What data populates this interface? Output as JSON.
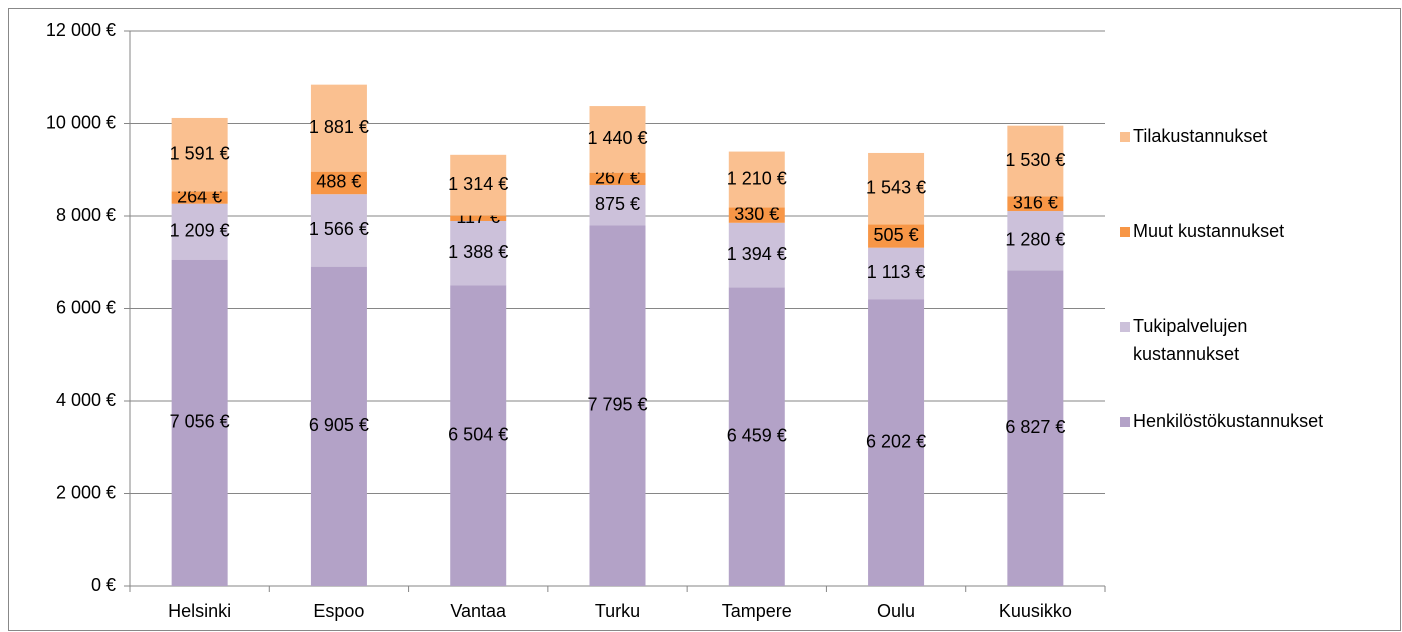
{
  "chart_data": {
    "type": "stacked_bar",
    "categories": [
      "Helsinki",
      "Espoo",
      "Vantaa",
      "Turku",
      "Tampere",
      "Oulu",
      "Kuusikko"
    ],
    "series": [
      {
        "name": "Henkilöstökustannukset",
        "color": "#b3a2c7",
        "values": [
          7056,
          6905,
          6504,
          7795,
          6459,
          6202,
          6827
        ],
        "value_labels": [
          "7 056 €",
          "6 905 €",
          "6 504 €",
          "7 795 €",
          "6 459 €",
          "6 202 €",
          "6 827 €"
        ]
      },
      {
        "name": "Tukipalvelujen kustannukset",
        "color": "#ccc1da",
        "values": [
          1209,
          1566,
          1388,
          875,
          1394,
          1113,
          1280
        ],
        "value_labels": [
          "1 209 €",
          "1 566 €",
          "1 388 €",
          "875 €",
          "1 394 €",
          "1 113 €",
          "1 280 €"
        ]
      },
      {
        "name": "Muut kustannukset",
        "color": "#f79646",
        "values": [
          264,
          488,
          117,
          267,
          330,
          505,
          316
        ],
        "value_labels": [
          "264 €",
          "488 €",
          "117 €",
          "267 €",
          "330 €",
          "505 €",
          "316 €"
        ]
      },
      {
        "name": "Tilakustannukset",
        "color": "#fac090",
        "values": [
          1591,
          1881,
          1314,
          1440,
          1210,
          1543,
          1530
        ],
        "value_labels": [
          "1 591 €",
          "1 881 €",
          "1 314 €",
          "1 440 €",
          "1 210 €",
          "1 543 €",
          "1 530 €"
        ]
      }
    ],
    "ylim": [
      0,
      12000
    ],
    "yticks": [
      {
        "value": 0,
        "label": "0 €"
      },
      {
        "value": 2000,
        "label": "2 000 €"
      },
      {
        "value": 4000,
        "label": "4 000 €"
      },
      {
        "value": 6000,
        "label": "6 000 €"
      },
      {
        "value": 8000,
        "label": "8 000 €"
      },
      {
        "value": 10000,
        "label": "10 000 €"
      },
      {
        "value": 12000,
        "label": "12 000 €"
      }
    ],
    "grid": true,
    "legend": "right"
  }
}
